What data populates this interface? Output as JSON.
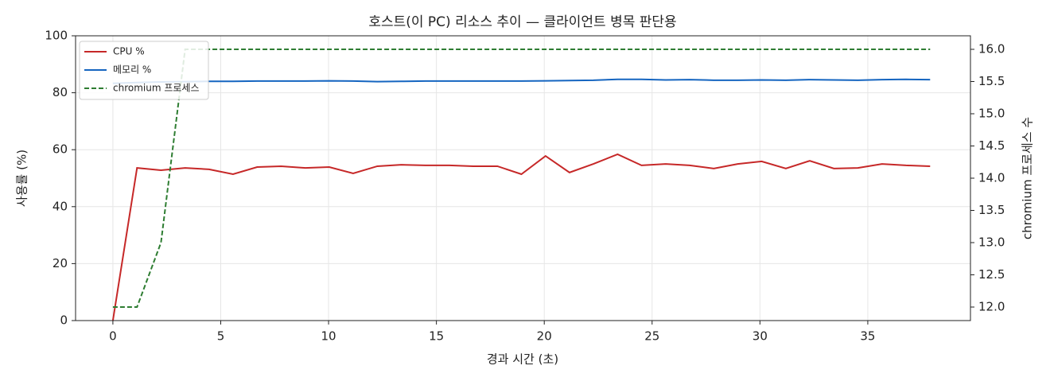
{
  "chart_data": {
    "type": "line",
    "title": "호스트(이 PC) 리소스 추이 — 클라이언트 병목 판단용",
    "xlabel": "경과 시간 (초)",
    "ylabel": "사용률 (%)",
    "y2label": "chromium 프로세스 수",
    "x": [
      0,
      1.12,
      2.23,
      3.35,
      4.46,
      5.57,
      6.69,
      7.8,
      8.92,
      10.03,
      11.14,
      12.26,
      13.37,
      14.49,
      15.6,
      16.71,
      17.83,
      18.94,
      20.06,
      21.17,
      22.28,
      23.4,
      24.51,
      25.63,
      26.74,
      27.86,
      28.97,
      30.08,
      31.2,
      32.31,
      33.43,
      34.54,
      35.66,
      36.77,
      37.89
    ],
    "series": [
      {
        "name": "CPU %",
        "color": "#c62828",
        "dash": false,
        "values": [
          0,
          53.6,
          52.8,
          53.6,
          53.1,
          51.4,
          53.9,
          54.2,
          53.6,
          53.9,
          51.7,
          54.2,
          54.7,
          54.5,
          54.5,
          54.2,
          54.2,
          51.4,
          57.8,
          52.0,
          55.0,
          58.4,
          54.5,
          55.0,
          54.5,
          53.4,
          55.0,
          55.9,
          53.4,
          56.1,
          53.4,
          53.6,
          55.0,
          54.5,
          54.2
        ]
      },
      {
        "name": "메모리 %",
        "color": "#1565c0",
        "dash": false,
        "values": [
          83.3,
          83.6,
          83.8,
          83.9,
          84.0,
          84.0,
          84.1,
          84.1,
          84.1,
          84.2,
          84.1,
          83.9,
          84.0,
          84.1,
          84.1,
          84.1,
          84.1,
          84.1,
          84.2,
          84.3,
          84.4,
          84.7,
          84.7,
          84.5,
          84.6,
          84.4,
          84.4,
          84.5,
          84.4,
          84.6,
          84.5,
          84.4,
          84.6,
          84.7,
          84.6
        ]
      },
      {
        "name": "chromium 프로세스",
        "color": "#2e7d32",
        "dash": true,
        "axis": "y2",
        "values": [
          12,
          12,
          13,
          16,
          16,
          16,
          16,
          16,
          16,
          16,
          16,
          16,
          16,
          16,
          16,
          16,
          16,
          16,
          16,
          16,
          16,
          16,
          16,
          16,
          16,
          16,
          16,
          16,
          16,
          16,
          16,
          16,
          16,
          16,
          16
        ]
      }
    ],
    "xlim": [
      -1.73,
      39.76
    ],
    "xticks": [
      0,
      5,
      10,
      15,
      20,
      25,
      30,
      35
    ],
    "ylim": [
      0,
      100
    ],
    "yticks": [
      0,
      20,
      40,
      60,
      80,
      100
    ],
    "y2lim": [
      11.79,
      16.21
    ],
    "y2ticks": [
      {
        "value": 12,
        "label": "12.0"
      },
      {
        "value": 12.5,
        "label": "12.5"
      },
      {
        "value": 13,
        "label": "13.0"
      },
      {
        "value": 13.5,
        "label": "13.5"
      },
      {
        "value": 14,
        "label": "14.0"
      },
      {
        "value": 14.5,
        "label": "14.5"
      },
      {
        "value": 15,
        "label": "15.0"
      },
      {
        "value": 15.5,
        "label": "15.5"
      },
      {
        "value": 16,
        "label": "16.0"
      }
    ],
    "grid": true,
    "legend": "upper-left"
  }
}
